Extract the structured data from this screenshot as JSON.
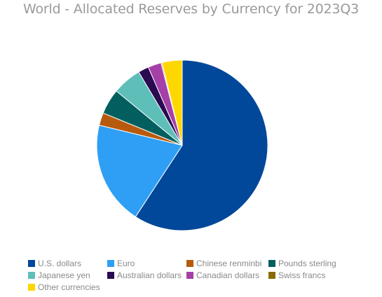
{
  "chart_data": {
    "type": "pie",
    "title": "World - Allocated Reserves by Currency for 2023Q3",
    "legend_position": "bottom",
    "slices": [
      {
        "label": "U.S. dollars",
        "value": 59.2,
        "color": "#01479a"
      },
      {
        "label": "Euro",
        "value": 19.6,
        "color": "#2e9ff5"
      },
      {
        "label": "Chinese renminbi",
        "value": 2.4,
        "color": "#b85a0d"
      },
      {
        "label": "Pounds sterling",
        "value": 4.8,
        "color": "#035f5f"
      },
      {
        "label": "Japanese yen",
        "value": 5.5,
        "color": "#5ebfb9"
      },
      {
        "label": "Australian dollars",
        "value": 2.0,
        "color": "#2a0a50"
      },
      {
        "label": "Canadian dollars",
        "value": 2.5,
        "color": "#a440a8"
      },
      {
        "label": "Swiss francs",
        "value": 0.2,
        "color": "#8a6a00"
      },
      {
        "label": "Other currencies",
        "value": 3.8,
        "color": "#ffd700"
      }
    ]
  }
}
